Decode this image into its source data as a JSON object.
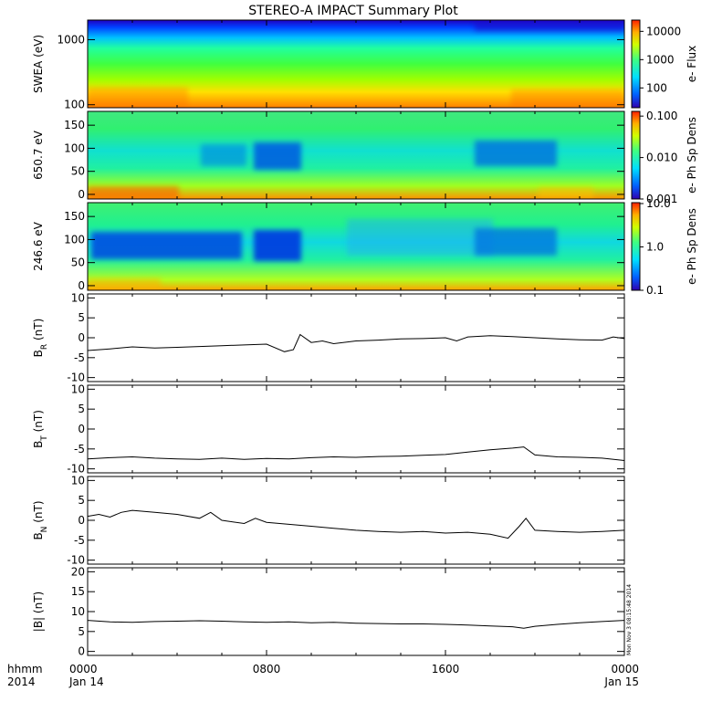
{
  "title": "STEREO-A IMPACT Summary Plot",
  "stamp": "Mon Nov 3 08:15:48 2014",
  "x_axis": {
    "row1_label": "hhmm",
    "row2_label": "2014",
    "ticks": [
      {
        "value": 0,
        "top": "0000",
        "bottom": "Jan 14"
      },
      {
        "value": 8,
        "top": "0800",
        "bottom": ""
      },
      {
        "value": 16,
        "top": "1600",
        "bottom": ""
      },
      {
        "value": 24,
        "top": "0000",
        "bottom": "Jan 15"
      }
    ],
    "range_hours": [
      0,
      24
    ]
  },
  "colors": {
    "line": "#000000",
    "colormap": [
      "#3000b0",
      "#0060ff",
      "#00e0ff",
      "#40ff80",
      "#d0ff00",
      "#ffb000",
      "#ff2000"
    ]
  },
  "chart_data": [
    {
      "type": "heatmap",
      "ylabel": "SWEA (eV)",
      "y_scale": "log",
      "ylim": [
        90,
        2000
      ],
      "yticks": [
        {
          "value": 100,
          "label": "100"
        },
        {
          "value": 1000,
          "label": "1000"
        }
      ],
      "colorbar_label": "e- Flux",
      "colorbar_scale": "log",
      "colorbar_range": [
        20,
        25000
      ],
      "colorbar_ticks": [
        {
          "value": 100,
          "label": "100"
        },
        {
          "value": 1000,
          "label": "1000"
        },
        {
          "value": 10000,
          "label": "10000"
        }
      ]
    },
    {
      "type": "heatmap",
      "ylabel": "650.7 eV",
      "ylim": [
        -10,
        180
      ],
      "yticks": [
        {
          "value": 0,
          "label": "0"
        },
        {
          "value": 50,
          "label": "50"
        },
        {
          "value": 100,
          "label": "100"
        },
        {
          "value": 150,
          "label": "150"
        }
      ],
      "colorbar_label": "e- Ph Sp Dens",
      "colorbar_scale": "log",
      "colorbar_range": [
        0.001,
        0.13
      ],
      "colorbar_ticks": [
        {
          "value": 0.001,
          "label": "0.001"
        },
        {
          "value": 0.01,
          "label": "0.010"
        },
        {
          "value": 0.1,
          "label": "0.100"
        }
      ]
    },
    {
      "type": "heatmap",
      "ylabel": "246.6 eV",
      "ylim": [
        -10,
        180
      ],
      "yticks": [
        {
          "value": 0,
          "label": "0"
        },
        {
          "value": 50,
          "label": "50"
        },
        {
          "value": 100,
          "label": "100"
        },
        {
          "value": 150,
          "label": "150"
        }
      ],
      "colorbar_label": "e- Ph Sp Dens",
      "colorbar_scale": "log",
      "colorbar_range": [
        0.1,
        10.5
      ],
      "colorbar_ticks": [
        {
          "value": 0.1,
          "label": "0.1"
        },
        {
          "value": 1,
          "label": "1.0"
        },
        {
          "value": 10,
          "label": "10.0"
        }
      ]
    },
    {
      "type": "line",
      "ylabel_main": "B",
      "ylabel_sub": "R",
      "ylabel_unit": " (nT)",
      "ylim": [
        -11,
        11
      ],
      "yticks": [
        {
          "value": -10,
          "label": "-10"
        },
        {
          "value": -5,
          "label": "-5"
        },
        {
          "value": 0,
          "label": "0"
        },
        {
          "value": 5,
          "label": "5"
        },
        {
          "value": 10,
          "label": "10"
        }
      ],
      "x": [
        0,
        1,
        2,
        3,
        4,
        5,
        6,
        7,
        8,
        8.8,
        9.2,
        9.5,
        10,
        10.5,
        11,
        12,
        13,
        14,
        15,
        16,
        16.5,
        17,
        18,
        19,
        20,
        21,
        22,
        23,
        23.5,
        24
      ],
      "values": [
        -3.2,
        -2.8,
        -2.3,
        -2.6,
        -2.4,
        -2.2,
        -2.0,
        -1.8,
        -1.6,
        -3.5,
        -3.0,
        0.8,
        -1.2,
        -0.8,
        -1.5,
        -0.8,
        -0.6,
        -0.3,
        -0.2,
        0.0,
        -0.8,
        0.2,
        0.5,
        0.3,
        0.0,
        -0.3,
        -0.5,
        -0.6,
        0.2,
        -0.2
      ]
    },
    {
      "type": "line",
      "ylabel_main": "B",
      "ylabel_sub": "T",
      "ylabel_unit": " (nT)",
      "ylim": [
        -11,
        11
      ],
      "yticks": [
        {
          "value": -10,
          "label": "-10"
        },
        {
          "value": -5,
          "label": "-5"
        },
        {
          "value": 0,
          "label": "0"
        },
        {
          "value": 5,
          "label": "5"
        },
        {
          "value": 10,
          "label": "10"
        }
      ],
      "x": [
        0,
        1,
        2,
        3,
        4,
        5,
        6,
        7,
        8,
        9,
        10,
        11,
        12,
        13,
        14,
        15,
        16,
        17,
        18,
        19,
        19.5,
        20,
        21,
        22,
        23,
        24
      ],
      "values": [
        -7.5,
        -7.2,
        -7.0,
        -7.3,
        -7.5,
        -7.6,
        -7.3,
        -7.6,
        -7.4,
        -7.5,
        -7.2,
        -7.0,
        -7.1,
        -6.9,
        -6.8,
        -6.6,
        -6.4,
        -5.8,
        -5.2,
        -4.8,
        -4.5,
        -6.5,
        -7.0,
        -7.1,
        -7.3,
        -7.9
      ]
    },
    {
      "type": "line",
      "ylabel_main": "B",
      "ylabel_sub": "N",
      "ylabel_unit": " (nT)",
      "ylim": [
        -11,
        11
      ],
      "yticks": [
        {
          "value": -10,
          "label": "-10"
        },
        {
          "value": -5,
          "label": "-5"
        },
        {
          "value": 0,
          "label": "0"
        },
        {
          "value": 5,
          "label": "5"
        },
        {
          "value": 10,
          "label": "10"
        }
      ],
      "x": [
        0,
        0.5,
        1,
        1.5,
        2,
        3,
        4,
        5,
        5.5,
        6,
        7,
        7.5,
        8,
        9,
        10,
        11,
        12,
        13,
        14,
        15,
        16,
        17,
        18,
        18.8,
        19.3,
        19.6,
        20,
        21,
        22,
        23,
        24
      ],
      "values": [
        1.0,
        1.5,
        0.8,
        2.0,
        2.5,
        2.0,
        1.5,
        0.5,
        2.0,
        0.0,
        -0.8,
        0.5,
        -0.5,
        -1.0,
        -1.5,
        -2.0,
        -2.5,
        -2.8,
        -3.0,
        -2.8,
        -3.2,
        -3.0,
        -3.5,
        -4.5,
        -1.5,
        0.5,
        -2.5,
        -2.8,
        -3.0,
        -2.8,
        -2.5
      ]
    },
    {
      "type": "line",
      "ylabel": "|B| (nT)",
      "ylim": [
        -1,
        21
      ],
      "yticks": [
        {
          "value": 0,
          "label": "0"
        },
        {
          "value": 5,
          "label": "5"
        },
        {
          "value": 10,
          "label": "10"
        },
        {
          "value": 15,
          "label": "15"
        },
        {
          "value": 20,
          "label": "20"
        }
      ],
      "x": [
        0,
        1,
        2,
        3,
        4,
        5,
        6,
        7,
        8,
        9,
        10,
        11,
        12,
        13,
        14,
        15,
        16,
        17,
        18,
        19,
        19.5,
        20,
        21,
        22,
        23,
        24
      ],
      "values": [
        7.8,
        7.4,
        7.3,
        7.5,
        7.6,
        7.7,
        7.6,
        7.4,
        7.3,
        7.4,
        7.2,
        7.3,
        7.1,
        7.0,
        6.9,
        6.9,
        6.8,
        6.6,
        6.4,
        6.2,
        5.8,
        6.3,
        6.8,
        7.2,
        7.5,
        7.8
      ]
    }
  ]
}
